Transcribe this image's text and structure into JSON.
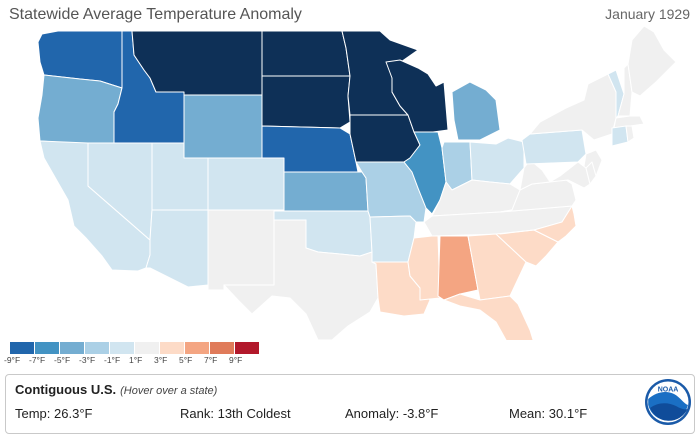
{
  "header": {
    "title": "Statewide Average Temperature Anomaly",
    "date": "January 1929"
  },
  "map": {
    "colors": {
      "d4": "#2166ac",
      "d3": "#4393c3",
      "d2": "#74add1",
      "d1": "#abd0e6",
      "d0": "#d1e5f0",
      "n0": "#f0f0f0",
      "w1": "#fddbc7",
      "w2": "#f4a582",
      "w3": "#e07b5a",
      "w4": "#b2182b",
      "dd": "#0e3057",
      "gray": "#f2f2f2",
      "border": "#ffffff"
    },
    "states": [
      {
        "code": "WA",
        "bin": "d4"
      },
      {
        "code": "OR",
        "bin": "d2"
      },
      {
        "code": "CA",
        "bin": "d0"
      },
      {
        "code": "ID",
        "bin": "d4"
      },
      {
        "code": "NV",
        "bin": "d0"
      },
      {
        "code": "MT",
        "bin": "dd"
      },
      {
        "code": "WY",
        "bin": "d2"
      },
      {
        "code": "UT",
        "bin": "d0"
      },
      {
        "code": "AZ",
        "bin": "d0"
      },
      {
        "code": "CO",
        "bin": "d0"
      },
      {
        "code": "NM",
        "bin": "n0"
      },
      {
        "code": "ND",
        "bin": "dd"
      },
      {
        "code": "SD",
        "bin": "dd"
      },
      {
        "code": "NE",
        "bin": "d4"
      },
      {
        "code": "KS",
        "bin": "d2"
      },
      {
        "code": "OK",
        "bin": "d0"
      },
      {
        "code": "TX",
        "bin": "n0"
      },
      {
        "code": "MN",
        "bin": "dd"
      },
      {
        "code": "IA",
        "bin": "dd"
      },
      {
        "code": "MO",
        "bin": "d1"
      },
      {
        "code": "AR",
        "bin": "d0"
      },
      {
        "code": "LA",
        "bin": "w1"
      },
      {
        "code": "WI",
        "bin": "dd"
      },
      {
        "code": "IL",
        "bin": "d3"
      },
      {
        "code": "MI",
        "bin": "d2"
      },
      {
        "code": "IN",
        "bin": "d1"
      },
      {
        "code": "OH",
        "bin": "d0"
      },
      {
        "code": "KY",
        "bin": "n0"
      },
      {
        "code": "TN",
        "bin": "n0"
      },
      {
        "code": "MS",
        "bin": "w1"
      },
      {
        "code": "AL",
        "bin": "w2"
      },
      {
        "code": "GA",
        "bin": "w1"
      },
      {
        "code": "FL",
        "bin": "w1"
      },
      {
        "code": "SC",
        "bin": "w1"
      },
      {
        "code": "NC",
        "bin": "w1"
      },
      {
        "code": "VA",
        "bin": "n0"
      },
      {
        "code": "WV",
        "bin": "n0"
      },
      {
        "code": "PA",
        "bin": "d0"
      },
      {
        "code": "NY",
        "bin": "n0"
      },
      {
        "code": "VT",
        "bin": "d0"
      },
      {
        "code": "NH",
        "bin": "n0"
      },
      {
        "code": "ME",
        "bin": "n0"
      },
      {
        "code": "MA",
        "bin": "n0"
      },
      {
        "code": "CT",
        "bin": "d0"
      },
      {
        "code": "NJ",
        "bin": "n0"
      },
      {
        "code": "MD",
        "bin": "n0"
      },
      {
        "code": "DE",
        "bin": "n0"
      },
      {
        "code": "RI",
        "bin": "n0"
      }
    ]
  },
  "legend": {
    "swatches": [
      "#2166ac",
      "#4393c3",
      "#74add1",
      "#abd0e6",
      "#d1e5f0",
      "#f0f0f0",
      "#fddbc7",
      "#f4a582",
      "#e07b5a",
      "#b2182b"
    ],
    "labels": [
      "-9°F",
      "-7°F",
      "-5°F",
      "-3°F",
      "-1°F",
      "1°F",
      "3°F",
      "5°F",
      "7°F",
      "9°F"
    ]
  },
  "info": {
    "title": "Contiguous U.S.",
    "hint": "(Hover over a state)",
    "temp_label": "Temp:",
    "temp_value": "26.3°F",
    "rank_label": "Rank:",
    "rank_value": "13th Coldest",
    "anomaly_label": "Anomaly:",
    "anomaly_value": "-3.8°F",
    "mean_label": "Mean:",
    "mean_value": "30.1°F"
  },
  "logo": {
    "text": "NOAA",
    "icon": "noaa-logo-icon"
  }
}
